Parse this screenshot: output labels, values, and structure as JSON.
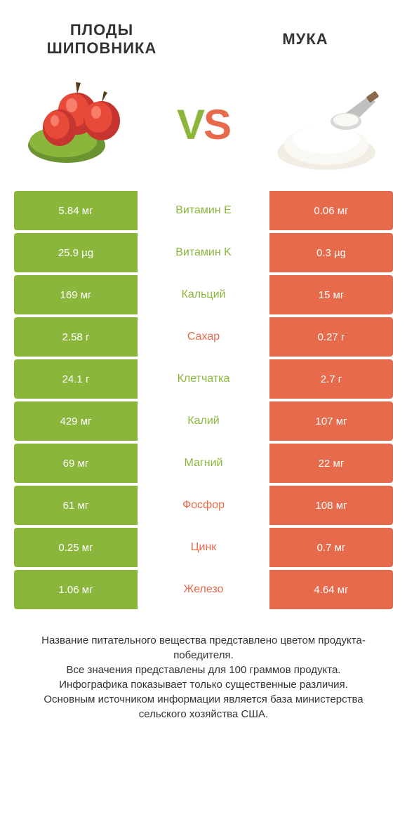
{
  "colors": {
    "left": "#8bb63c",
    "right": "#e76a4b",
    "text": "#333333"
  },
  "header": {
    "left_title": "ПЛОДЫ ШИПОВНИКА",
    "right_title": "МУКА",
    "vs_v": "V",
    "vs_s": "S"
  },
  "rows": [
    {
      "left": "5.84 мг",
      "label": "Витамин Е",
      "right": "0.06 мг",
      "winner": "left"
    },
    {
      "left": "25.9 µg",
      "label": "Витамин K",
      "right": "0.3 µg",
      "winner": "left"
    },
    {
      "left": "169 мг",
      "label": "Кальций",
      "right": "15 мг",
      "winner": "left"
    },
    {
      "left": "2.58 г",
      "label": "Сахар",
      "right": "0.27 г",
      "winner": "right"
    },
    {
      "left": "24.1 г",
      "label": "Клетчатка",
      "right": "2.7 г",
      "winner": "left"
    },
    {
      "left": "429 мг",
      "label": "Калий",
      "right": "107 мг",
      "winner": "left"
    },
    {
      "left": "69 мг",
      "label": "Магний",
      "right": "22 мг",
      "winner": "left"
    },
    {
      "left": "61 мг",
      "label": "Фосфор",
      "right": "108 мг",
      "winner": "right"
    },
    {
      "left": "0.25 мг",
      "label": "Цинк",
      "right": "0.7 мг",
      "winner": "right"
    },
    {
      "left": "1.06 мг",
      "label": "Железо",
      "right": "4.64 мг",
      "winner": "right"
    }
  ],
  "footer": {
    "line1": "Название питательного вещества представлено цветом продукта-победителя.",
    "line2": "Все значения представлены для 100 граммов продукта.",
    "line3": "Инфографика показывает только существенные различия.",
    "line4": "Основным источником информации является база министерства сельского хозяйства США."
  }
}
